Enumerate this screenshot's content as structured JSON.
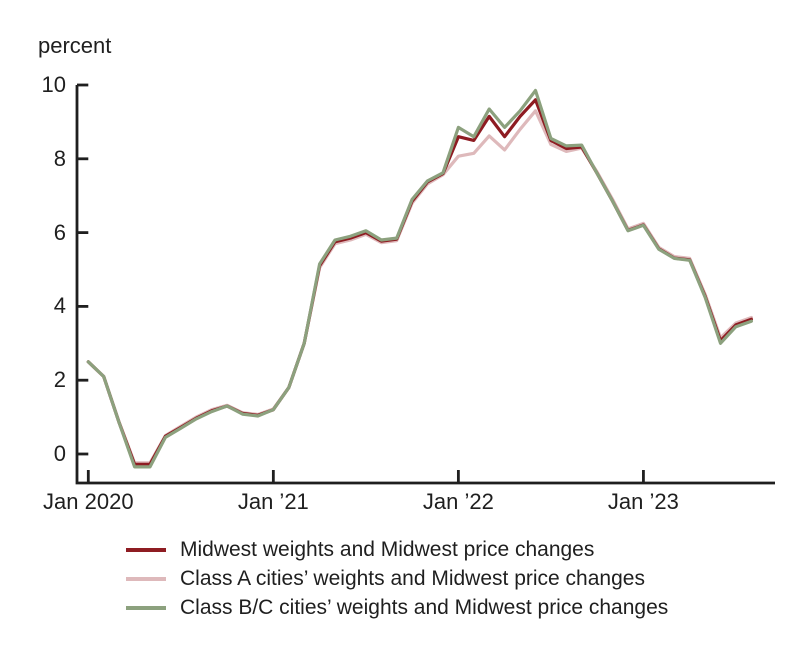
{
  "chart_data": {
    "type": "line",
    "title": "",
    "ylabel": "percent",
    "xlabel": "",
    "x_frequency": "monthly",
    "x_start": "Jan 2020",
    "x_end": "Aug 2023",
    "n_points": 44,
    "x_tick_labels": [
      "Jan 2020",
      "Jan ’21",
      "Jan ’22",
      "Jan ’23"
    ],
    "x_tick_months": [
      0,
      12,
      24,
      36
    ],
    "y_ticks": [
      0,
      2,
      4,
      6,
      8,
      10
    ],
    "ylim": [
      -0.6,
      10
    ],
    "grid": false,
    "legend_position": "bottom-left",
    "series": [
      {
        "name": "Midwest weights and Midwest price changes",
        "color": "#8E1C22",
        "values": [
          2.5,
          2.1,
          0.85,
          -0.28,
          -0.28,
          0.48,
          0.72,
          0.97,
          1.17,
          1.3,
          1.1,
          1.05,
          1.2,
          1.8,
          3.0,
          5.1,
          5.75,
          5.85,
          6.0,
          5.77,
          5.82,
          6.85,
          7.37,
          7.6,
          8.6,
          8.5,
          9.15,
          8.6,
          9.15,
          9.6,
          8.5,
          8.28,
          8.32,
          7.6,
          6.85,
          6.06,
          6.21,
          5.56,
          5.31,
          5.26,
          4.28,
          3.07,
          3.5,
          3.65
        ]
      },
      {
        "name": "Class A cities’ weights and Midwest price changes",
        "color": "#DEB9BB",
        "values": [
          2.5,
          2.1,
          0.87,
          -0.24,
          -0.24,
          0.5,
          0.75,
          1.0,
          1.2,
          1.32,
          1.12,
          1.07,
          1.22,
          1.8,
          3.0,
          5.05,
          5.7,
          5.8,
          5.95,
          5.73,
          5.78,
          6.8,
          7.32,
          7.57,
          8.07,
          8.15,
          8.62,
          8.24,
          8.8,
          9.3,
          8.39,
          8.2,
          8.29,
          7.64,
          6.9,
          6.1,
          6.25,
          5.6,
          5.35,
          5.3,
          4.33,
          3.15,
          3.55,
          3.7
        ]
      },
      {
        "name": "Class B/C cities’ weights and Midwest price changes",
        "color": "#8CA17E",
        "values": [
          2.5,
          2.1,
          0.85,
          -0.35,
          -0.35,
          0.45,
          0.7,
          0.95,
          1.15,
          1.3,
          1.08,
          1.03,
          1.2,
          1.8,
          3.0,
          5.15,
          5.8,
          5.9,
          6.05,
          5.8,
          5.85,
          6.9,
          7.4,
          7.62,
          8.85,
          8.6,
          9.35,
          8.85,
          9.3,
          9.85,
          8.55,
          8.35,
          8.37,
          7.6,
          6.85,
          6.05,
          6.2,
          5.55,
          5.3,
          5.25,
          4.25,
          3.0,
          3.45,
          3.6
        ]
      }
    ]
  },
  "colors": {
    "axis": "#1F1F1F",
    "text": "#1F1F1F",
    "background": "#FFFFFF"
  }
}
